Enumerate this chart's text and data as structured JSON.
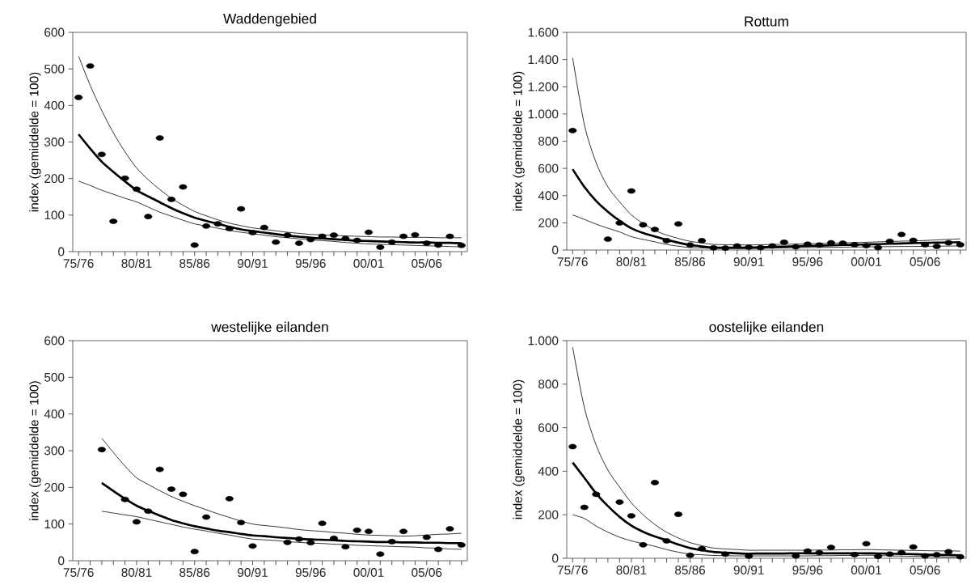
{
  "chart_data": [
    {
      "type": "scatter",
      "title": "Waddengebied",
      "ylabel": "index (gemiddelde = 100)",
      "ylim": [
        0,
        600
      ],
      "yticks": [
        0,
        100,
        200,
        300,
        400,
        500,
        600
      ],
      "categories": [
        "75/76",
        null,
        null,
        null,
        null,
        "80/81",
        null,
        null,
        null,
        null,
        "85/86",
        null,
        null,
        null,
        null,
        "90/91",
        null,
        null,
        null,
        null,
        "95/96",
        null,
        null,
        null,
        null,
        "00/01",
        null,
        null,
        null,
        null,
        "05/06",
        null,
        null,
        null
      ],
      "series": [
        {
          "type": "line",
          "color": "#000000",
          "values": [
            321,
            282,
            246,
            218,
            192,
            168,
            151,
            135,
            119,
            105,
            93,
            84,
            76,
            68,
            61,
            56,
            52,
            48,
            44,
            41,
            38,
            36,
            34,
            32,
            30,
            29,
            28,
            27,
            26,
            25,
            25,
            24,
            24,
            23
          ]
        },
        {
          "type": "line",
          "color": "#000000",
          "values": [
            535,
            455,
            386,
            325,
            273,
            229,
            197,
            170,
            146,
            127,
            110,
            98,
            87,
            78,
            71,
            65,
            61,
            57,
            53,
            50,
            47,
            46,
            44,
            43,
            42,
            41,
            40,
            40,
            39,
            39,
            39,
            38,
            38,
            38
          ]
        },
        {
          "type": "line",
          "color": "#000000",
          "values": [
            193,
            181,
            168,
            157,
            146,
            136,
            122,
            108,
            97,
            86,
            76,
            70,
            64,
            58,
            53,
            49,
            45,
            41,
            38,
            35,
            32,
            30,
            28,
            25,
            23,
            21,
            20,
            19,
            18,
            17,
            16,
            15,
            14,
            13
          ]
        },
        {
          "color": "#000000",
          "marker": "circle",
          "values": [
            422,
            508,
            266,
            83,
            201,
            171,
            96,
            311,
            143,
            177,
            18,
            70,
            76,
            63,
            117,
            52,
            66,
            26,
            45,
            23,
            33,
            42,
            45,
            36,
            31,
            53,
            12,
            26,
            42,
            46,
            23,
            18,
            42,
            17
          ]
        }
      ]
    },
    {
      "type": "scatter",
      "title": "Rottum",
      "ylabel": "index (gemiddelde = 100)",
      "ylim": [
        0,
        1600
      ],
      "yticks": [
        0,
        200,
        400,
        600,
        800,
        {
          "value": 1000,
          "label": "1.000"
        },
        {
          "value": 1200,
          "label": "1.200"
        },
        {
          "value": 1400,
          "label": "1.400"
        },
        {
          "value": 1600,
          "label": "1.600"
        }
      ],
      "categories": [
        "75/76",
        null,
        null,
        null,
        null,
        "80/81",
        null,
        null,
        null,
        null,
        "85/86",
        null,
        null,
        null,
        null,
        "90/91",
        null,
        null,
        null,
        null,
        "95/96",
        null,
        null,
        null,
        null,
        "00/01",
        null,
        null,
        null,
        null,
        "05/06",
        null,
        null,
        null
      ],
      "series": [
        {
          "type": "line",
          "color": "#000000",
          "values": [
            594,
            464,
            361,
            281,
            215,
            160,
            125,
            100,
            75,
            54,
            37,
            26,
            18,
            17,
            17,
            18,
            20,
            23,
            25,
            28,
            30,
            32,
            34,
            37,
            39,
            41,
            43,
            46,
            48,
            51,
            53,
            54,
            56,
            57
          ]
        },
        {
          "type": "line",
          "color": "#000000",
          "values": [
            1413,
            921,
            642,
            464,
            354,
            258,
            195,
            144,
            110,
            85,
            64,
            52,
            41,
            39,
            38,
            37,
            39,
            41,
            42,
            44,
            46,
            48,
            50,
            53,
            55,
            57,
            60,
            62,
            65,
            67,
            70,
            74,
            78,
            82
          ]
        },
        {
          "type": "line",
          "color": "#000000",
          "values": [
            258,
            225,
            190,
            160,
            133,
            98,
            78,
            60,
            41,
            28,
            18,
            15,
            12,
            12,
            11,
            11,
            12,
            14,
            15,
            17,
            18,
            19,
            20,
            21,
            22,
            23,
            24,
            25,
            26,
            26,
            27,
            28,
            29,
            30
          ]
        },
        {
          "color": "#000000",
          "marker": "circle",
          "values": [
            878,
            null,
            null,
            80,
            199,
            434,
            185,
            151,
            69,
            192,
            37,
            69,
            16,
            14,
            30,
            21,
            18,
            30,
            57,
            23,
            43,
            37,
            53,
            50,
            39,
            32,
            18,
            64,
            114,
            71,
            39,
            27,
            53,
            39
          ]
        }
      ]
    },
    {
      "type": "scatter",
      "title": "westelijke eilanden",
      "ylabel": "index (gemiddelde = 100)",
      "ylim": [
        0,
        600
      ],
      "yticks": [
        0,
        100,
        200,
        300,
        400,
        500,
        600
      ],
      "categories": [
        "75/76",
        null,
        null,
        null,
        null,
        "80/81",
        null,
        null,
        null,
        null,
        "85/86",
        null,
        null,
        null,
        null,
        "90/91",
        null,
        null,
        null,
        null,
        "95/96",
        null,
        null,
        null,
        null,
        "00/01",
        null,
        null,
        null,
        null,
        "05/06",
        null,
        null,
        null
      ],
      "series": [
        {
          "type": "line",
          "color": "#000000",
          "values": [
            null,
            null,
            212,
            190,
            169,
            150,
            136,
            123,
            111,
            102,
            94,
            88,
            82,
            78,
            73,
            69,
            67,
            64,
            62,
            60,
            58,
            57,
            56,
            54,
            53,
            52,
            51,
            51,
            50,
            50,
            49,
            49,
            48,
            48
          ]
        },
        {
          "type": "line",
          "color": "#000000",
          "values": [
            null,
            null,
            334,
            295,
            258,
            226,
            208,
            191,
            175,
            162,
            150,
            139,
            128,
            118,
            108,
            100,
            96,
            93,
            89,
            85,
            82,
            80,
            77,
            75,
            72,
            70,
            69,
            68,
            67,
            68,
            70,
            72,
            73,
            75
          ]
        },
        {
          "type": "line",
          "color": "#000000",
          "values": [
            null,
            null,
            135,
            130,
            125,
            120,
            113,
            106,
            99,
            92,
            86,
            81,
            75,
            70,
            64,
            59,
            57,
            55,
            52,
            50,
            48,
            47,
            45,
            44,
            42,
            41,
            40,
            39,
            38,
            37,
            35,
            34,
            32,
            31
          ]
        },
        {
          "color": "#000000",
          "marker": "circle",
          "values": [
            null,
            null,
            303,
            null,
            167,
            106,
            135,
            249,
            195,
            181,
            25,
            119,
            null,
            169,
            104,
            40,
            null,
            null,
            50,
            59,
            49,
            102,
            61,
            38,
            83,
            80,
            18,
            52,
            80,
            null,
            64,
            31,
            87,
            43
          ]
        }
      ]
    },
    {
      "type": "scatter",
      "title": "oostelijke eilanden",
      "ylabel": "index (gemiddelde = 100)",
      "ylim": [
        0,
        1000
      ],
      "yticks": [
        0,
        200,
        400,
        600,
        800,
        {
          "value": 1000,
          "label": "1.000"
        }
      ],
      "categories": [
        "75/76",
        null,
        null,
        null,
        null,
        "80/81",
        null,
        null,
        null,
        null,
        "85/86",
        null,
        null,
        null,
        null,
        "90/91",
        null,
        null,
        null,
        null,
        "95/96",
        null,
        null,
        null,
        null,
        "00/01",
        null,
        null,
        null,
        null,
        "05/06",
        null,
        null,
        null
      ],
      "series": [
        {
          "type": "line",
          "color": "#000000",
          "values": [
            440,
            370,
            298,
            240,
            190,
            150,
            122,
            100,
            83,
            63,
            47,
            37,
            29,
            26,
            23,
            21,
            22,
            22,
            22,
            23,
            23,
            23,
            23,
            23,
            23,
            23,
            22,
            21,
            20,
            19,
            17,
            16,
            15,
            14
          ]
        },
        {
          "type": "line",
          "color": "#000000",
          "values": [
            970,
            692,
            520,
            405,
            327,
            255,
            200,
            155,
            120,
            93,
            72,
            58,
            47,
            43,
            40,
            37,
            37,
            37,
            37,
            37,
            37,
            38,
            38,
            39,
            39,
            40,
            39,
            38,
            37,
            36,
            35,
            34,
            34,
            33
          ]
        },
        {
          "type": "line",
          "color": "#000000",
          "values": [
            200,
            183,
            148,
            120,
            97,
            80,
            67,
            55,
            40,
            28,
            19,
            16,
            13,
            12,
            11,
            11,
            11,
            11,
            11,
            11,
            11,
            12,
            12,
            13,
            13,
            14,
            13,
            11,
            10,
            9,
            8,
            7,
            5,
            4
          ]
        },
        {
          "color": "#000000",
          "marker": "circle",
          "values": [
            513,
            234,
            294,
            null,
            258,
            195,
            62,
            348,
            80,
            202,
            14,
            44,
            null,
            19,
            null,
            10,
            null,
            null,
            null,
            11,
            33,
            26,
            50,
            null,
            17,
            67,
            9,
            19,
            26,
            52,
            11,
            16,
            30,
            7
          ]
        }
      ]
    }
  ]
}
